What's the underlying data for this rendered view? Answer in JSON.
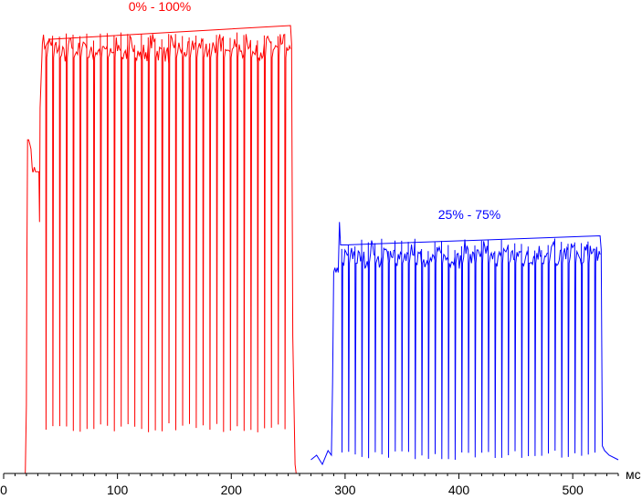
{
  "chart_data": {
    "type": "line",
    "title": "",
    "xlabel": "",
    "ylabel": "",
    "x_unit": "мс",
    "xlim": [
      0,
      540
    ],
    "ylim": [
      0,
      100
    ],
    "x_ticks": [
      0,
      100,
      200,
      300,
      400,
      500
    ],
    "grid": false,
    "series": [
      {
        "name": "0% - 100%",
        "color": "#ff0000",
        "x": [
          0,
          19,
          20,
          20.5,
          21,
          22,
          23,
          24,
          25,
          25.5,
          26,
          27,
          28,
          29,
          30,
          31,
          31.5,
          32,
          34,
          35,
          36,
          38,
          40,
          252,
          253,
          254,
          256,
          257,
          270
        ],
        "y": [
          0,
          0,
          15,
          48,
          73,
          73,
          72,
          71,
          67,
          66,
          66,
          67,
          66,
          66,
          66,
          66,
          55,
          80,
          94,
          96,
          93,
          94,
          95,
          98,
          94,
          30,
          2,
          0,
          0
        ]
      },
      {
        "name": "25% - 75%",
        "color": "#0000ff",
        "x": [
          270,
          275,
          280,
          285,
          288,
          289,
          290,
          291,
          292,
          293,
          294,
          295,
          296,
          298,
          300,
          524,
          525,
          526,
          528,
          532,
          540
        ],
        "y": [
          3,
          4,
          2,
          5,
          4,
          20,
          44,
          45,
          44,
          45,
          44,
          55,
          50,
          50,
          50,
          52,
          49,
          6,
          5,
          4,
          3
        ]
      }
    ],
    "annotations": [
      {
        "text": "0% - 100%",
        "series": 0
      },
      {
        "text": "25% - 75%",
        "series": 1
      }
    ],
    "pulse_train": [
      {
        "series": 0,
        "start": 37,
        "end": 252,
        "period": 6.0,
        "high": 95,
        "low": 10
      },
      {
        "series": 1,
        "start": 297,
        "end": 524,
        "period": 5.85,
        "high": 50,
        "low": 4
      }
    ]
  }
}
